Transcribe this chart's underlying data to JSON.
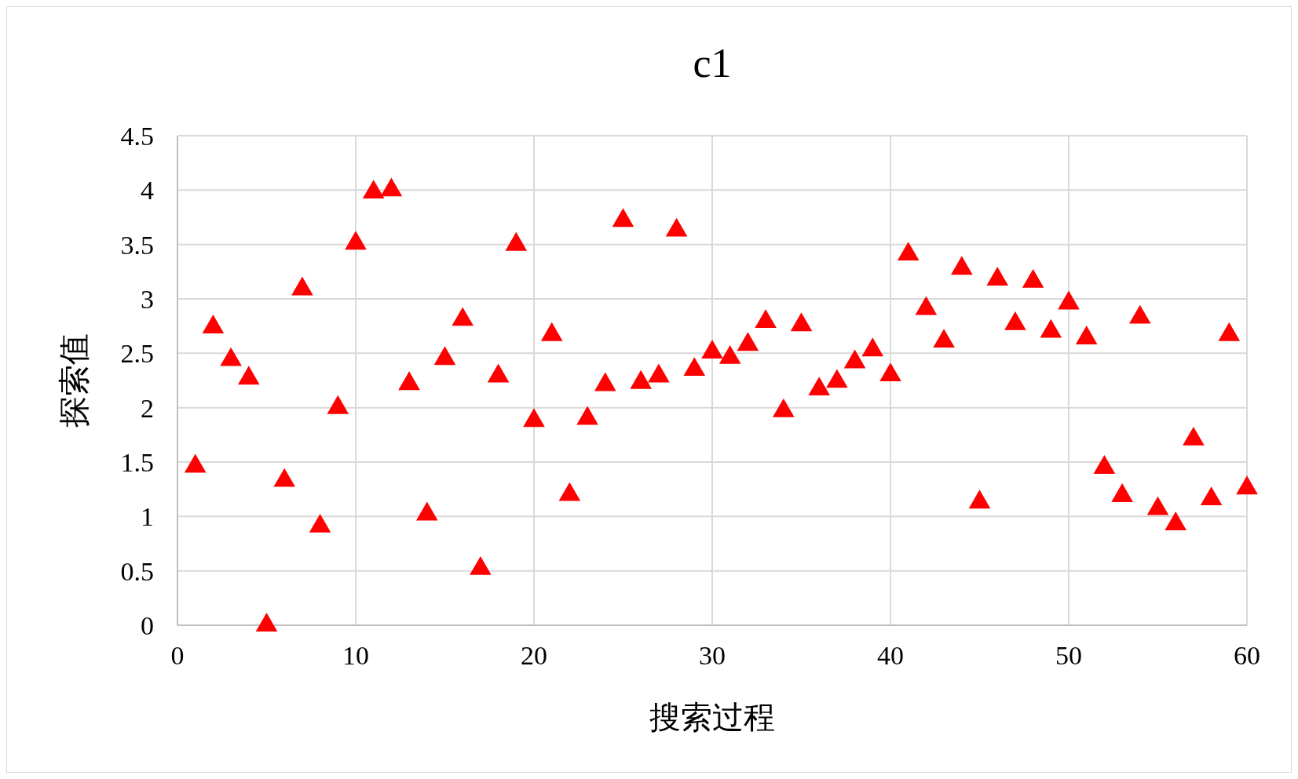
{
  "chart_data": {
    "type": "scatter",
    "title": "c1",
    "xlabel": "搜索过程",
    "ylabel": "探索值",
    "x": [
      1,
      2,
      3,
      4,
      5,
      6,
      7,
      8,
      9,
      10,
      11,
      12,
      13,
      14,
      15,
      16,
      17,
      18,
      19,
      20,
      21,
      22,
      23,
      24,
      25,
      26,
      27,
      28,
      29,
      30,
      31,
      32,
      33,
      34,
      35,
      36,
      37,
      38,
      39,
      40,
      41,
      42,
      43,
      44,
      45,
      46,
      47,
      48,
      49,
      50,
      51,
      52,
      53,
      54,
      55,
      56,
      57,
      58,
      59,
      60
    ],
    "series": [
      {
        "color": "#ff0000",
        "values": [
          1.46,
          2.74,
          2.44,
          2.27,
          0,
          1.33,
          3.09,
          0.91,
          2.0,
          3.51,
          3.98,
          4.0,
          2.22,
          1.02,
          2.45,
          2.81,
          0.52,
          2.29,
          3.5,
          1.88,
          2.67,
          1.2,
          1.9,
          2.21,
          3.72,
          2.23,
          2.29,
          3.63,
          2.35,
          2.51,
          2.46,
          2.58,
          2.79,
          1.97,
          2.76,
          2.17,
          2.24,
          2.42,
          2.53,
          2.3,
          3.41,
          2.91,
          2.61,
          3.28,
          1.13,
          3.18,
          2.77,
          3.16,
          2.7,
          2.96,
          2.64,
          1.45,
          1.19,
          2.83,
          1.07,
          0.93,
          1.71,
          1.16,
          2.67,
          1.26
        ]
      }
    ],
    "xlim": [
      0,
      60
    ],
    "xticks": [
      0,
      10,
      20,
      30,
      40,
      50,
      60
    ],
    "ylim": [
      0,
      4.5
    ],
    "yticks": [
      0,
      0.5,
      1,
      1.5,
      2,
      2.5,
      3,
      3.5,
      4,
      4.5
    ],
    "grid": true,
    "marker": "triangle"
  }
}
